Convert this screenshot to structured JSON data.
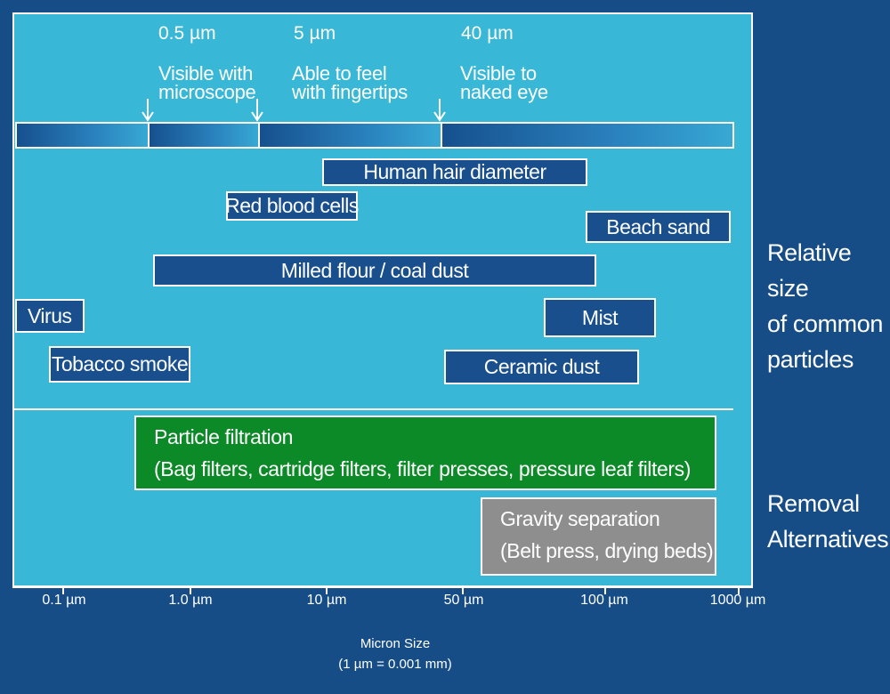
{
  "milestones": [
    {
      "size": "0.5 µm",
      "label": "Visible with\nmicroscope"
    },
    {
      "size": "5 µm",
      "label": "Able to feel\nwith fingertips"
    },
    {
      "size": "40 µm",
      "label": "Visible to\nnaked eye"
    }
  ],
  "particles": {
    "human_hair": "Human hair diameter",
    "red_blood_cells": "Red blood cells",
    "beach_sand": "Beach sand",
    "milled_flour": "Milled flour / coal dust",
    "virus": "Virus",
    "mist": "Mist",
    "tobacco_smoke": "Tobacco smoke",
    "ceramic_dust": "Ceramic dust"
  },
  "removal": {
    "particle_filtration": {
      "title": "Particle filtration",
      "detail": "(Bag filters, cartridge filters, filter presses, pressure leaf filters)"
    },
    "gravity_separation": {
      "title": "Gravity separation",
      "detail": "(Belt press, drying beds)"
    }
  },
  "side_labels": {
    "relative_size": "Relative size\nof common\nparticles",
    "removal_alternatives": "Removal\nAlternatives"
  },
  "axis": {
    "ticks": [
      "0.1 µm",
      "1.0 µm",
      "10 µm",
      "50 µm",
      "100 µm",
      "1000 µm"
    ],
    "title": "Micron Size",
    "subtitle": "(1 µm = 0.001 mm)"
  },
  "colors": {
    "background": "#164d86",
    "panel": "#38b7d6",
    "particle_box": "#184f8c",
    "filtration": "#0d8a28",
    "gravity": "#8e8e8e"
  }
}
